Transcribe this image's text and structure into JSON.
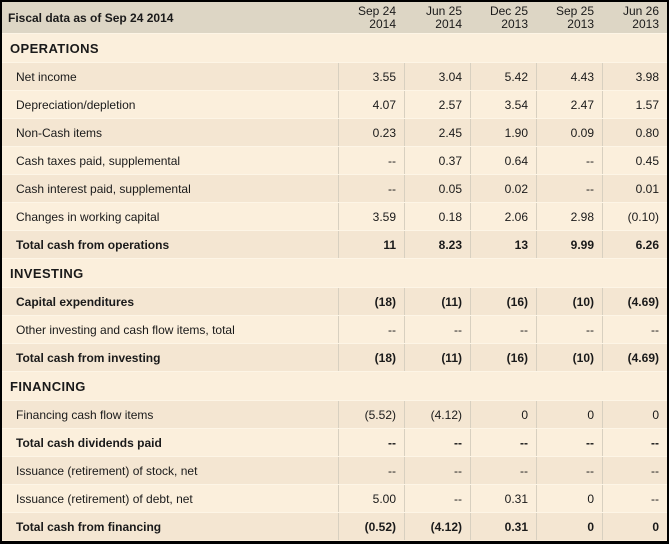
{
  "header": {
    "title": "Fiscal data as of Sep 24 2014",
    "columns": [
      {
        "line1": "Sep 24",
        "line2": "2014"
      },
      {
        "line1": "Jun 25",
        "line2": "2014"
      },
      {
        "line1": "Dec 25",
        "line2": "2013"
      },
      {
        "line1": "Sep 25",
        "line2": "2013"
      },
      {
        "line1": "Jun 26",
        "line2": "2013"
      }
    ]
  },
  "sections": [
    {
      "name": "OPERATIONS",
      "rows": [
        {
          "label": "Net income",
          "bold": false,
          "values": [
            "3.55",
            "3.04",
            "5.42",
            "4.43",
            "3.98"
          ]
        },
        {
          "label": "Depreciation/depletion",
          "bold": false,
          "values": [
            "4.07",
            "2.57",
            "3.54",
            "2.47",
            "1.57"
          ]
        },
        {
          "label": "Non-Cash items",
          "bold": false,
          "values": [
            "0.23",
            "2.45",
            "1.90",
            "0.09",
            "0.80"
          ]
        },
        {
          "label": "Cash taxes paid, supplemental",
          "bold": false,
          "values": [
            "--",
            "0.37",
            "0.64",
            "--",
            "0.45"
          ]
        },
        {
          "label": "Cash interest paid, supplemental",
          "bold": false,
          "values": [
            "--",
            "0.05",
            "0.02",
            "--",
            "0.01"
          ]
        },
        {
          "label": "Changes in working capital",
          "bold": false,
          "values": [
            "3.59",
            "0.18",
            "2.06",
            "2.98",
            "(0.10)"
          ]
        },
        {
          "label": "Total cash from operations",
          "bold": true,
          "values": [
            "11",
            "8.23",
            "13",
            "9.99",
            "6.26"
          ]
        }
      ]
    },
    {
      "name": "INVESTING",
      "rows": [
        {
          "label": "Capital expenditures",
          "bold": true,
          "values": [
            "(18)",
            "(11)",
            "(16)",
            "(10)",
            "(4.69)"
          ]
        },
        {
          "label": "Other investing and cash flow items, total",
          "bold": false,
          "values": [
            "--",
            "--",
            "--",
            "--",
            "--"
          ]
        },
        {
          "label": "Total cash from investing",
          "bold": true,
          "values": [
            "(18)",
            "(11)",
            "(16)",
            "(10)",
            "(4.69)"
          ]
        }
      ]
    },
    {
      "name": "FINANCING",
      "rows": [
        {
          "label": "Financing cash flow items",
          "bold": false,
          "values": [
            "(5.52)",
            "(4.12)",
            "0",
            "0",
            "0"
          ]
        },
        {
          "label": "Total cash dividends paid",
          "bold": true,
          "values": [
            "--",
            "--",
            "--",
            "--",
            "--"
          ]
        },
        {
          "label": "Issuance (retirement) of stock, net",
          "bold": false,
          "values": [
            "--",
            "--",
            "--",
            "--",
            "--"
          ]
        },
        {
          "label": "Issuance (retirement) of debt, net",
          "bold": false,
          "values": [
            "5.00",
            "--",
            "0.31",
            "0",
            "--"
          ]
        },
        {
          "label": "Total cash from financing",
          "bold": true,
          "values": [
            "(0.52)",
            "(4.12)",
            "0.31",
            "0",
            "0"
          ]
        }
      ]
    }
  ],
  "colors": {
    "topbar_bg": "#ddd6c5",
    "row_dark_bg": "#f4e6d2",
    "row_light_bg": "#fbefdc",
    "column_separator": "#d8d0c0",
    "row_divider": "#fdf5e6",
    "outer_border": "#000000",
    "text": "#1a1a1a"
  }
}
